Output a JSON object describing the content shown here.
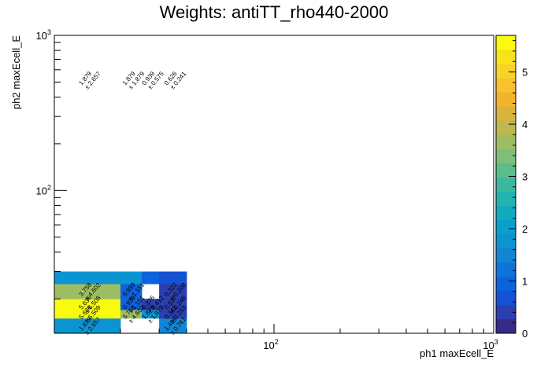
{
  "chart_data": {
    "type": "heatmap",
    "title": "Weights: antiTT_rho440-2000",
    "xlabel": "ph1 maxEcell_E",
    "ylabel": "ph2 maxEcell_E",
    "x_scale": "log",
    "y_scale": "log",
    "xlim": [
      10,
      1000
    ],
    "ylim": [
      12,
      1000
    ],
    "x_bin_edges": [
      10,
      20,
      25,
      30,
      40,
      1000
    ],
    "y_bin_edges": [
      12,
      15,
      17,
      20,
      25,
      30,
      40,
      1000
    ],
    "x_tick_labels": [
      {
        "value": 100,
        "base": "10",
        "exp": "2"
      },
      {
        "value": 1000,
        "base": "10",
        "exp": "3"
      }
    ],
    "y_tick_labels": [
      {
        "value": 100,
        "base": "10",
        "exp": "2"
      },
      {
        "value": 1000,
        "base": "10",
        "exp": "3"
      }
    ],
    "z_range": [
      0,
      5.7
    ],
    "colorbar_ticks": [
      "0",
      "1",
      "2",
      "3",
      "4",
      "5"
    ],
    "palette": [
      "#352a87",
      "#2c3eb0",
      "#1552d4",
      "#0d63de",
      "#0f74d9",
      "#1285d3",
      "#0c93d1",
      "#06a0cd",
      "#12aabf",
      "#24b2af",
      "#3bb99e",
      "#5cbd8a",
      "#7fbe76",
      "#9ebd62",
      "#bdb84f",
      "#d9b43d",
      "#f0b52d",
      "#f9c22d",
      "#f8d327",
      "#f6e31c",
      "#f9fa0e"
    ],
    "cells": [
      {
        "x": 0,
        "y": 0,
        "value": 1.879,
        "error": 2.657
      },
      {
        "x": 0,
        "y": 1,
        "value": 5.636,
        "error": 6.509
      },
      {
        "x": 0,
        "y": 2,
        "value": 5.636,
        "error": 6.508
      },
      {
        "x": 0,
        "y": 3,
        "value": 3.758,
        "error": 4.602
      },
      {
        "x": 0,
        "y": 4,
        "value": 1.879,
        "error": 2.657
      },
      {
        "x": 1,
        "y": 1,
        "value": 3.758,
        "error": 4.602
      },
      {
        "x": 1,
        "y": 2,
        "value": 0.939,
        "error": 1.151
      },
      {
        "x": 1,
        "y": 3,
        "value": 0.939,
        "error": 1.151
      },
      {
        "x": 1,
        "y": 4,
        "value": 1.879,
        "error": 1.879
      },
      {
        "x": 2,
        "y": 1,
        "value": 1.879,
        "error": 1.879
      },
      {
        "x": 2,
        "y": 2,
        "value": 0.376,
        "error": 0.412
      },
      {
        "x": 2,
        "y": 4,
        "value": 0.939,
        "error": 0.575
      },
      {
        "x": 3,
        "y": 0,
        "value": 1.469,
        "error": 0.761
      },
      {
        "x": 3,
        "y": 1,
        "value": 0.342,
        "error": 0.253
      },
      {
        "x": 3,
        "y": 2,
        "value": 0.537,
        "error": 0.246
      },
      {
        "x": 3,
        "y": 3,
        "value": 0.322,
        "error": 0.208
      },
      {
        "x": 3,
        "y": 4,
        "value": 0.626,
        "error": 0.241
      }
    ]
  }
}
